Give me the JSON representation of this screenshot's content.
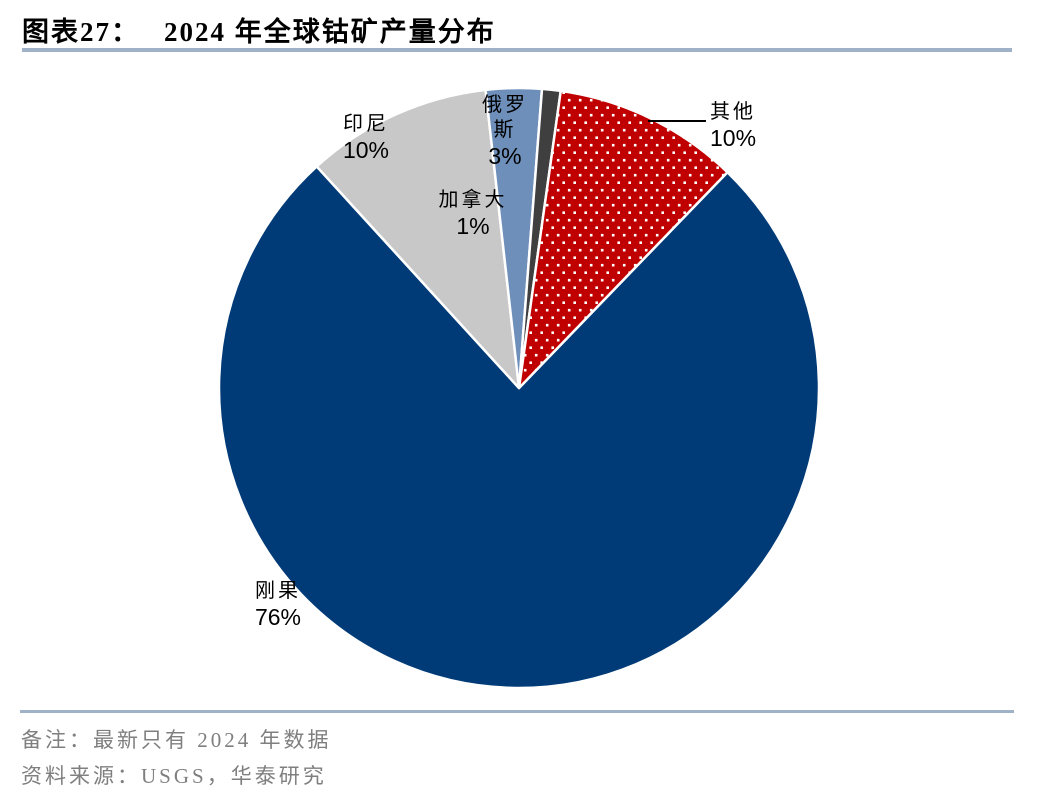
{
  "header": {
    "title_prefix": "图表27：",
    "title_text": "2024 年全球钴矿产量分布"
  },
  "chart_data": {
    "type": "pie",
    "title": "2024 年全球钴矿产量分布",
    "legend": "none",
    "direction": "clockwise",
    "start_angle_deg": 44,
    "categories": [
      "刚果",
      "印尼",
      "俄罗斯",
      "加拿大",
      "其他"
    ],
    "values": [
      76,
      10,
      3,
      1,
      10
    ],
    "slices": [
      {
        "key": "congo",
        "label": "刚果",
        "pct": 76,
        "color": "#003A77",
        "fill": "solid"
      },
      {
        "key": "indonesia",
        "label": "印尼",
        "pct": 10,
        "color": "#C8C8C8",
        "fill": "solid"
      },
      {
        "key": "russia",
        "label": "俄罗斯",
        "pct": 3,
        "color": "#6E8FBA",
        "fill": "solid"
      },
      {
        "key": "canada",
        "label": "加拿大",
        "pct": 1,
        "color": "#3F3F3F",
        "fill": "solid"
      },
      {
        "key": "other",
        "label": "其他",
        "pct": 10,
        "color": "#C00000",
        "fill": "white-dots"
      }
    ],
    "slice_border_color": "#FFFFFF",
    "label_style": "category name + percent"
  },
  "chart_labels": {
    "congo": {
      "name": "刚果",
      "pct": "76%"
    },
    "indonesia": {
      "name": "印尼",
      "pct": "10%"
    },
    "russia": {
      "line1": "俄罗",
      "line2": "斯",
      "pct": "3%"
    },
    "canada": {
      "name": "加拿大",
      "pct": "1%"
    },
    "other": {
      "name": "其他",
      "pct": "10%"
    }
  },
  "footer": {
    "note": "备注：最新只有 2024 年数据",
    "source": "资料来源：USGS，华泰研究"
  },
  "colors": {
    "accent_rule": "#A0B2C8",
    "footer_text": "#7F7F7F",
    "title_text": "#000000",
    "congo_blue": "#003A77",
    "indonesia_gray": "#C8C8C8",
    "russia_steelblue": "#6E8FBA",
    "canada_darkgray": "#3F3F3F",
    "other_red": "#C00000"
  }
}
